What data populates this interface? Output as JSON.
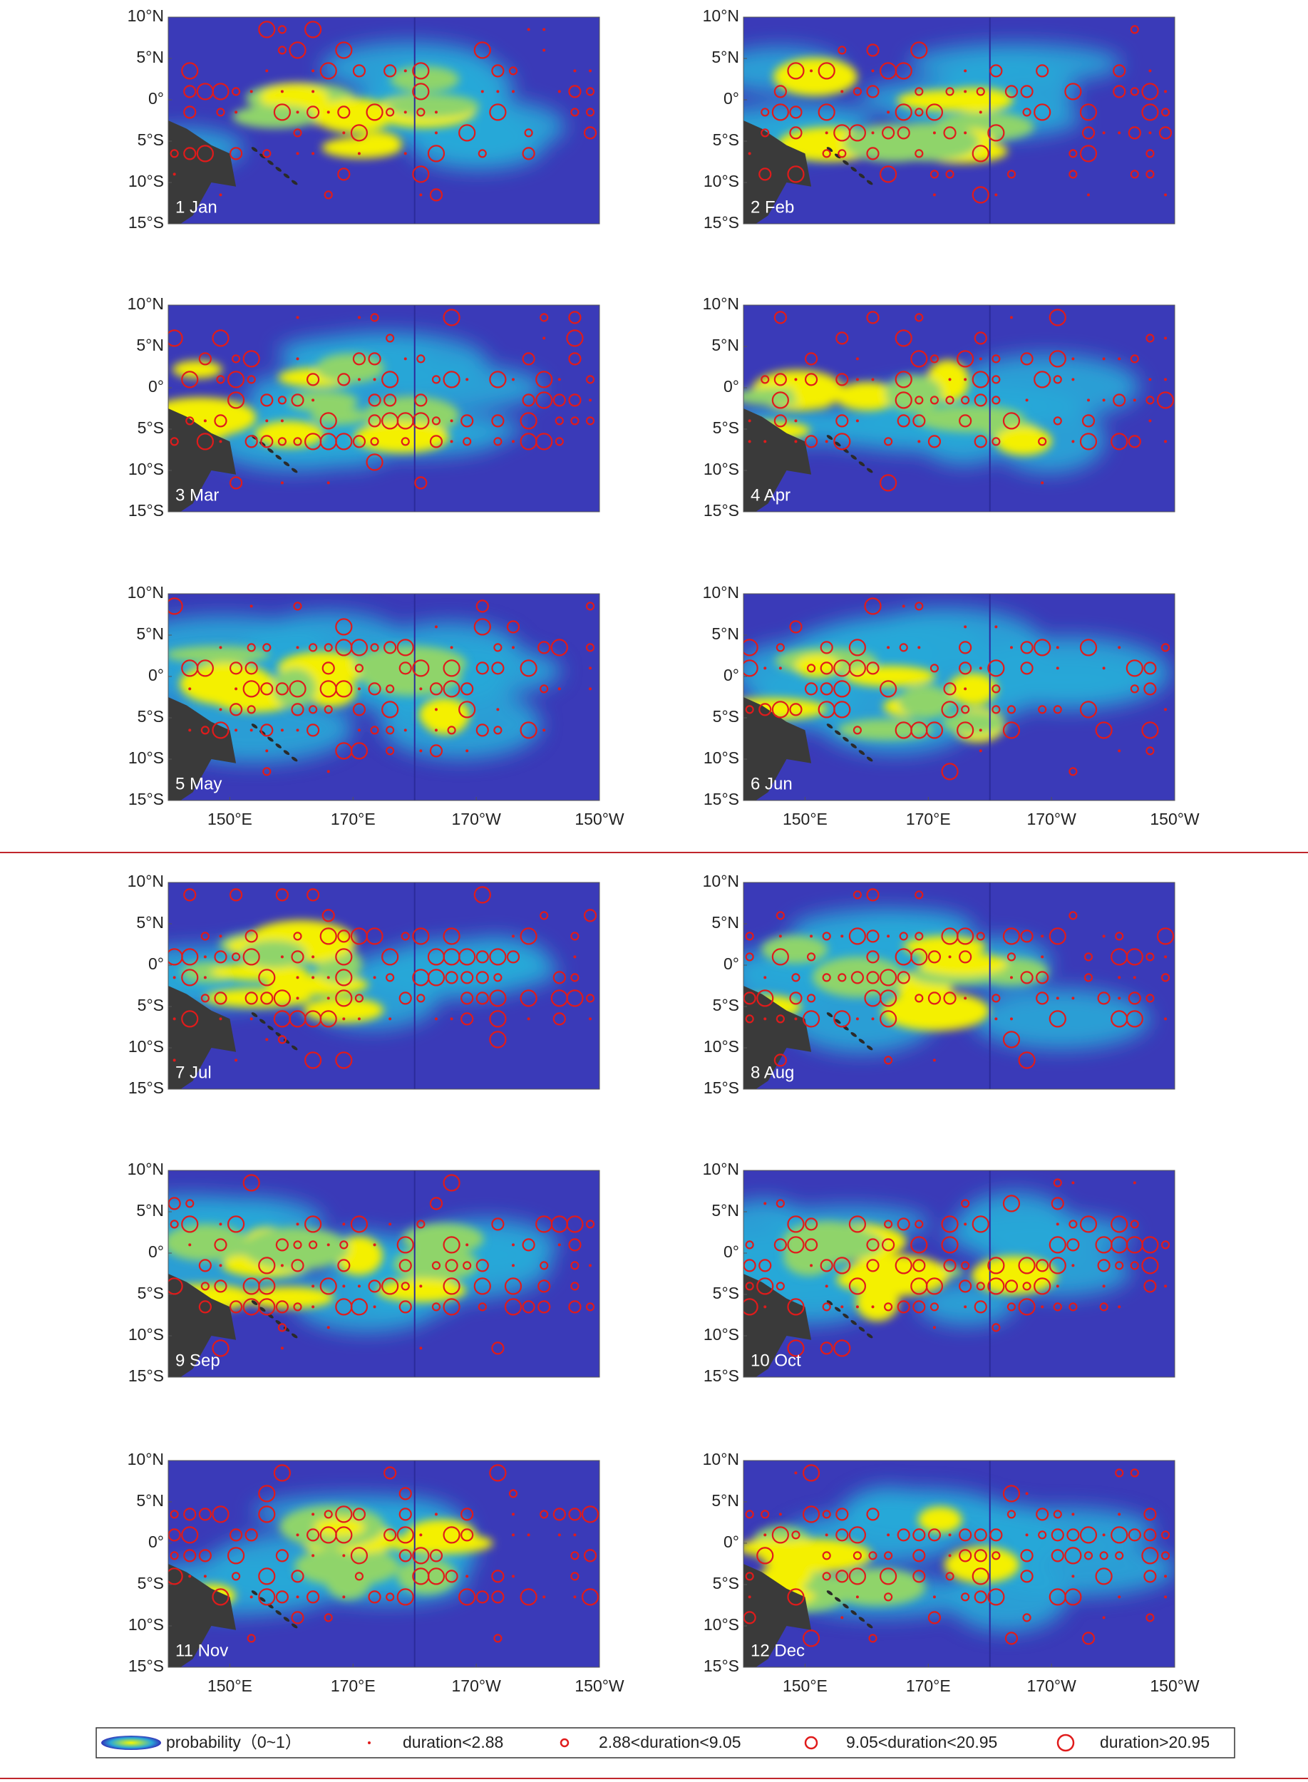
{
  "panels": [
    {
      "label": "1 Jan"
    },
    {
      "label": "2 Feb"
    },
    {
      "label": "3 Mar"
    },
    {
      "label": "4 Apr"
    },
    {
      "label": "5 May"
    },
    {
      "label": "6 Jun"
    },
    {
      "label": "7 Jul"
    },
    {
      "label": "8 Aug"
    },
    {
      "label": "9 Sep"
    },
    {
      "label": "10 Oct"
    },
    {
      "label": "11 Nov"
    },
    {
      "label": "12 Dec"
    }
  ],
  "lon_range": [
    140,
    210
  ],
  "lat_range": [
    -15,
    10
  ],
  "lat_ticks": [
    {
      "value": 10,
      "label": "10°N"
    },
    {
      "value": 5,
      "label": "5°N"
    },
    {
      "value": 0,
      "label": "0°"
    },
    {
      "value": -5,
      "label": "5°S"
    },
    {
      "value": -10,
      "label": "10°S"
    },
    {
      "value": -15,
      "label": "15°S"
    }
  ],
  "lon_ticks": [
    {
      "value": 150,
      "label": "150°E"
    },
    {
      "value": 170,
      "label": "170°E"
    },
    {
      "value": 190,
      "label": "170°W"
    },
    {
      "value": 210,
      "label": "150°W"
    }
  ],
  "legend": [
    {
      "label": "probability（0~1）"
    },
    {
      "label": "duration<2.88"
    },
    {
      "label": "2.88<duration<9.05"
    },
    {
      "label": "9.05<duration<20.95"
    },
    {
      "label": "duration>20.95"
    }
  ]
}
